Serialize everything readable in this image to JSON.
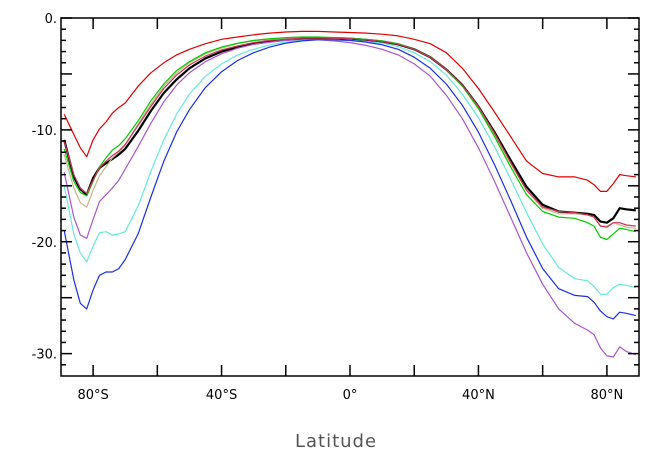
{
  "chart_data": {
    "type": "line",
    "title": "",
    "xlabel": "Latitude",
    "ylabel": "",
    "xlim": [
      -90,
      90
    ],
    "ylim": [
      -32,
      0
    ],
    "grid": false,
    "x_ticks": [
      {
        "value": -80,
        "label": "80°S"
      },
      {
        "value": -40,
        "label": "40°S"
      },
      {
        "value": 0,
        "label": "0°"
      },
      {
        "value": 40,
        "label": "40°N"
      },
      {
        "value": 80,
        "label": "80°N"
      }
    ],
    "y_ticks": [
      {
        "value": 0,
        "label": "0."
      },
      {
        "value": -10,
        "label": "-10."
      },
      {
        "value": -20,
        "label": "-20."
      },
      {
        "value": -30,
        "label": "-30."
      }
    ],
    "x": [
      -89,
      -86,
      -84,
      -82,
      -80,
      -78,
      -76,
      -74,
      -72,
      -70,
      -66,
      -62,
      -58,
      -54,
      -50,
      -45,
      -40,
      -35,
      -30,
      -25,
      -20,
      -15,
      -10,
      -5,
      0,
      5,
      10,
      15,
      20,
      25,
      30,
      35,
      40,
      45,
      50,
      55,
      60,
      65,
      70,
      74,
      76,
      78,
      80,
      82,
      84,
      86,
      89
    ],
    "series": [
      {
        "color": "#e00000",
        "width": 1.2,
        "values": [
          -8.6,
          -10.4,
          -11.6,
          -12.4,
          -10.9,
          -9.9,
          -9.3,
          -8.5,
          -8.0,
          -7.6,
          -6.1,
          -4.9,
          -4.0,
          -3.3,
          -2.8,
          -2.3,
          -1.9,
          -1.7,
          -1.5,
          -1.35,
          -1.25,
          -1.2,
          -1.2,
          -1.25,
          -1.3,
          -1.35,
          -1.45,
          -1.6,
          -1.9,
          -2.3,
          -3.1,
          -4.5,
          -6.3,
          -8.4,
          -10.6,
          -12.8,
          -13.9,
          -14.2,
          -14.2,
          -14.5,
          -14.9,
          -15.5,
          -15.5,
          -14.8,
          -14.0,
          -14.1,
          -14.2
        ]
      },
      {
        "color": "#000000",
        "width": 2.2,
        "values": [
          -10.9,
          -14.2,
          -15.3,
          -15.8,
          -14.3,
          -13.4,
          -13.0,
          -12.6,
          -12.2,
          -11.7,
          -10.1,
          -8.3,
          -6.7,
          -5.5,
          -4.5,
          -3.6,
          -3.0,
          -2.6,
          -2.3,
          -2.1,
          -1.95,
          -1.85,
          -1.8,
          -1.8,
          -1.85,
          -1.95,
          -2.1,
          -2.35,
          -2.8,
          -3.5,
          -4.6,
          -6.0,
          -7.9,
          -10.2,
          -12.7,
          -15.1,
          -16.7,
          -17.3,
          -17.4,
          -17.5,
          -17.6,
          -18.2,
          -18.3,
          -17.9,
          -17.0,
          -17.1,
          -17.2
        ]
      },
      {
        "color": "#c9b48a",
        "width": 1.2,
        "values": [
          -12.2,
          -15.2,
          -16.5,
          -16.9,
          -15.4,
          -14.1,
          -13.3,
          -12.5,
          -12.0,
          -11.4,
          -9.5,
          -7.7,
          -6.1,
          -4.9,
          -4.0,
          -3.2,
          -2.7,
          -2.3,
          -2.05,
          -1.9,
          -1.8,
          -1.75,
          -1.75,
          -1.8,
          -1.85,
          -1.9,
          -2.05,
          -2.3,
          -2.8,
          -3.5,
          -4.6,
          -6.1,
          -8.0,
          -10.4,
          -13.0,
          -15.4,
          -17.0,
          -17.5,
          -17.5,
          -17.6,
          -17.8,
          -18.6,
          -18.6,
          -18.3,
          -18.5,
          -18.7,
          -18.8
        ]
      },
      {
        "color": "#00cc00",
        "width": 1.2,
        "values": [
          -11.7,
          -14.6,
          -15.6,
          -15.9,
          -14.6,
          -13.3,
          -12.5,
          -11.8,
          -11.4,
          -10.8,
          -9.2,
          -7.4,
          -5.9,
          -4.7,
          -3.9,
          -3.1,
          -2.6,
          -2.25,
          -2.0,
          -1.85,
          -1.75,
          -1.7,
          -1.7,
          -1.75,
          -1.8,
          -1.9,
          -2.05,
          -2.3,
          -2.8,
          -3.5,
          -4.6,
          -6.1,
          -8.1,
          -10.6,
          -13.3,
          -15.8,
          -17.3,
          -17.8,
          -17.9,
          -18.3,
          -18.6,
          -19.6,
          -19.8,
          -19.3,
          -18.8,
          -18.9,
          -19.1
        ]
      },
      {
        "color": "#cc3355",
        "width": 1.2,
        "values": [
          -11.0,
          -14.0,
          -15.2,
          -15.7,
          -14.5,
          -13.4,
          -12.8,
          -12.3,
          -11.9,
          -11.3,
          -9.6,
          -7.9,
          -6.3,
          -5.1,
          -4.2,
          -3.4,
          -2.85,
          -2.5,
          -2.2,
          -2.0,
          -1.9,
          -1.8,
          -1.8,
          -1.8,
          -1.85,
          -1.95,
          -2.1,
          -2.35,
          -2.8,
          -3.5,
          -4.6,
          -6.0,
          -7.9,
          -10.3,
          -12.9,
          -15.4,
          -16.9,
          -17.3,
          -17.4,
          -17.6,
          -17.8,
          -18.6,
          -18.7,
          -18.3,
          -18.3,
          -18.5,
          -18.6
        ]
      },
      {
        "color": "#a855d0",
        "width": 1.2,
        "values": [
          -13.8,
          -17.8,
          -19.4,
          -19.7,
          -18.0,
          -16.4,
          -15.8,
          -15.2,
          -14.5,
          -13.5,
          -11.5,
          -9.4,
          -7.5,
          -6.0,
          -4.9,
          -3.9,
          -3.2,
          -2.7,
          -2.35,
          -2.15,
          -2.0,
          -1.95,
          -1.95,
          -2.05,
          -2.2,
          -2.45,
          -2.8,
          -3.3,
          -4.1,
          -5.2,
          -6.9,
          -9.0,
          -11.6,
          -14.6,
          -17.8,
          -21.0,
          -23.8,
          -26.0,
          -27.3,
          -27.9,
          -28.3,
          -29.5,
          -30.2,
          -30.3,
          -29.4,
          -29.8,
          -30.1
        ]
      },
      {
        "color": "#66ead8",
        "width": 1.2,
        "values": [
          -15.0,
          -19.3,
          -21.0,
          -21.8,
          -20.4,
          -19.2,
          -19.1,
          -19.4,
          -19.3,
          -19.1,
          -16.8,
          -13.7,
          -10.9,
          -8.6,
          -6.8,
          -5.2,
          -4.1,
          -3.3,
          -2.8,
          -2.4,
          -2.15,
          -2.0,
          -1.95,
          -1.95,
          -2.0,
          -2.1,
          -2.25,
          -2.55,
          -3.1,
          -3.9,
          -5.1,
          -6.8,
          -8.9,
          -11.5,
          -14.4,
          -17.4,
          -20.2,
          -22.3,
          -23.3,
          -23.5,
          -24.0,
          -24.7,
          -24.7,
          -24.1,
          -23.8,
          -23.9,
          -24.1
        ]
      },
      {
        "color": "#1a2ee8",
        "width": 1.2,
        "values": [
          -19.0,
          -23.4,
          -25.5,
          -26.0,
          -24.3,
          -23.0,
          -22.7,
          -22.7,
          -22.4,
          -21.6,
          -19.3,
          -16.0,
          -12.8,
          -10.2,
          -8.2,
          -6.2,
          -4.8,
          -3.8,
          -3.1,
          -2.6,
          -2.25,
          -2.05,
          -1.95,
          -1.95,
          -2.0,
          -2.15,
          -2.4,
          -2.8,
          -3.5,
          -4.5,
          -5.9,
          -7.8,
          -10.2,
          -13.1,
          -16.3,
          -19.6,
          -22.4,
          -24.2,
          -24.8,
          -24.9,
          -25.4,
          -26.2,
          -26.7,
          -26.9,
          -26.3,
          -26.4,
          -26.6
        ]
      }
    ]
  }
}
